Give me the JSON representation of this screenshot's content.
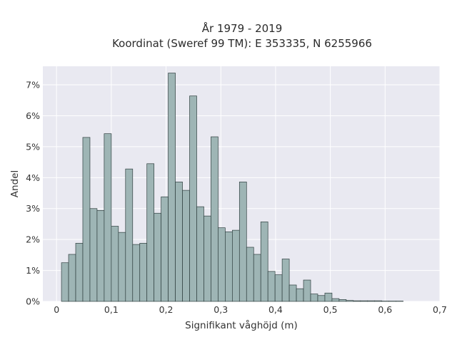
{
  "chart_data": {
    "type": "bar",
    "title": [
      "År 1979 - 2019",
      "Koordinat (Sweref 99 TM): E 353335, N 6255966"
    ],
    "xlabel": "Signifikant våghöjd (m)",
    "ylabel": "Andel",
    "xlim": [
      -0.025,
      0.7
    ],
    "ylim": [
      0,
      7.6
    ],
    "xticks": [
      0,
      0.1,
      0.2,
      0.3,
      0.4,
      0.5,
      0.6,
      0.7
    ],
    "xtick_labels": [
      "0",
      "0,1",
      "0,2",
      "0,3",
      "0,4",
      "0,5",
      "0,6",
      "0,7"
    ],
    "yticks": [
      0,
      1,
      2,
      3,
      4,
      5,
      6,
      7
    ],
    "ytick_labels": [
      "0%",
      "1%",
      "2%",
      "3%",
      "4%",
      "5%",
      "6%",
      "7%"
    ],
    "y_unit": "percent",
    "grid": true,
    "bar_color": "#9eb5b5",
    "bar_edge_color": "#2f3f3f",
    "plot_background": "#e9e9f1",
    "bin_width": 0.013,
    "bin_start": 0.009,
    "values": [
      1.25,
      1.52,
      1.88,
      5.3,
      3.0,
      2.94,
      5.42,
      2.43,
      2.23,
      4.28,
      1.84,
      1.88,
      4.45,
      2.85,
      3.38,
      7.38,
      3.86,
      3.59,
      6.64,
      3.06,
      2.76,
      5.32,
      2.38,
      2.25,
      2.3,
      3.86,
      1.75,
      1.52,
      2.57,
      0.97,
      0.86,
      1.37,
      0.53,
      0.41,
      0.69,
      0.24,
      0.19,
      0.27,
      0.09,
      0.06,
      0.03,
      0.02,
      0.02,
      0.02,
      0.02,
      0.01,
      0.01,
      0.01
    ]
  }
}
